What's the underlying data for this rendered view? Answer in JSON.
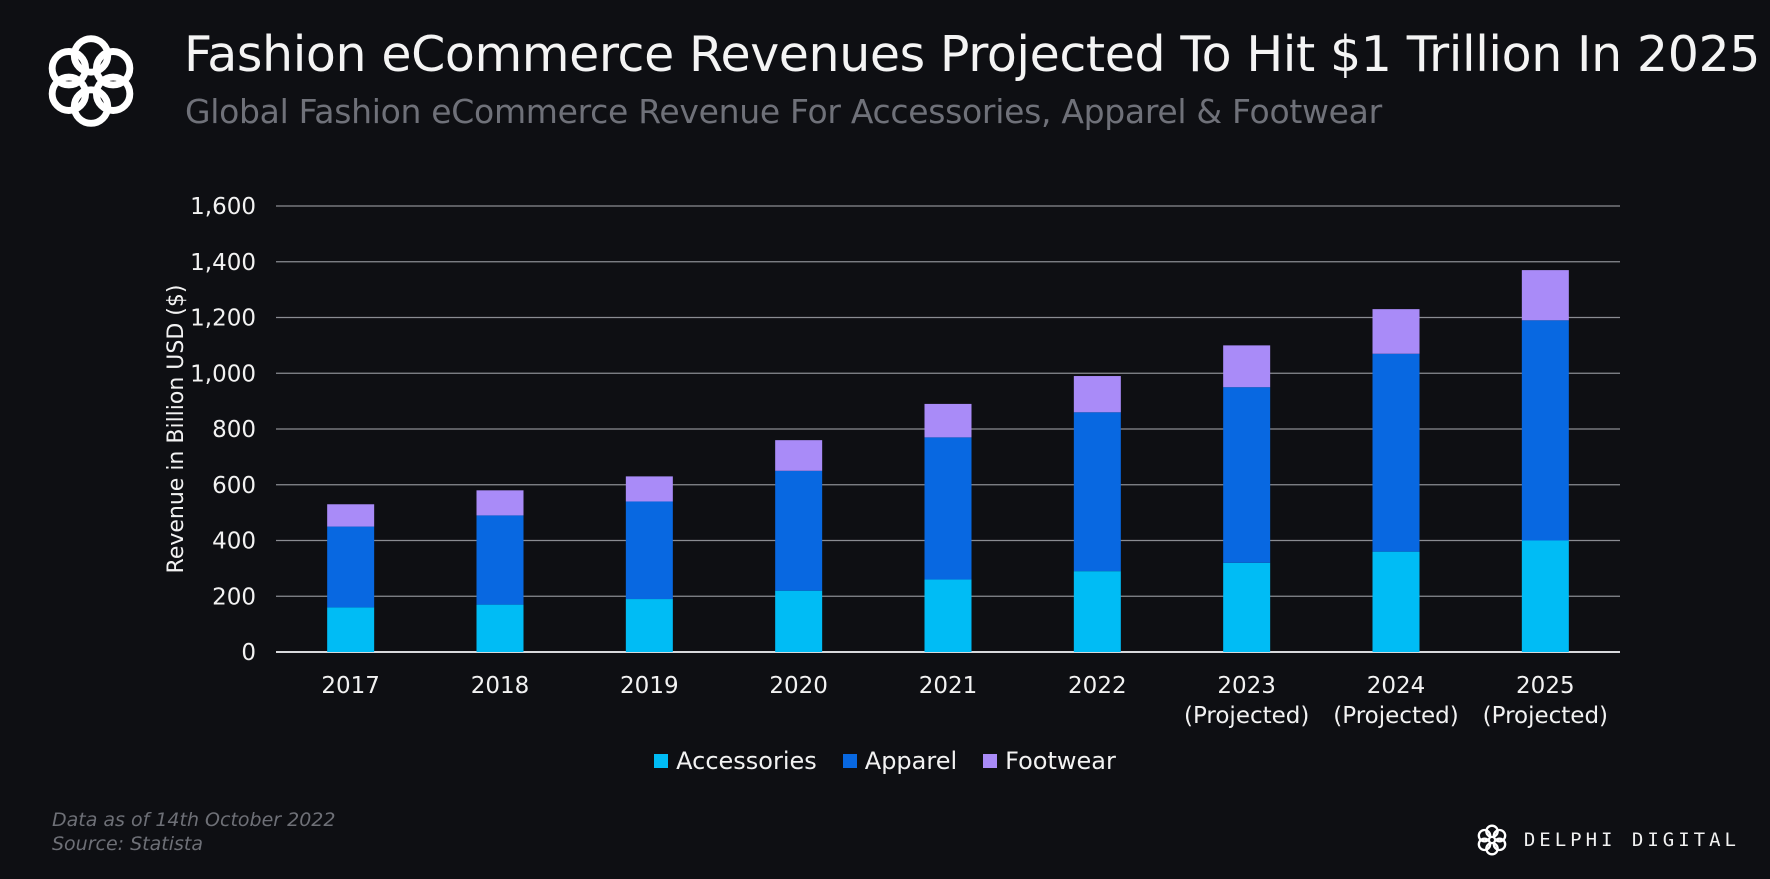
{
  "header": {
    "title": "Fashion eCommerce Revenues Projected To Hit $1 Trillion In 2025",
    "subtitle": "Global Fashion eCommerce Revenue For Accessories, Apparel & Footwear"
  },
  "colors": {
    "background": "#0e0f13",
    "accessories": "#00bcf5",
    "apparel": "#0868e1",
    "footwear": "#a98bf8",
    "grid": "#8a8c92"
  },
  "chart_data": {
    "type": "bar",
    "stacked": true,
    "categories": [
      [
        "2017"
      ],
      [
        "2018"
      ],
      [
        "2019"
      ],
      [
        "2020"
      ],
      [
        "2021"
      ],
      [
        "2022"
      ],
      [
        "2023",
        "(Projected)"
      ],
      [
        "2024",
        "(Projected)"
      ],
      [
        "2025",
        "(Projected)"
      ]
    ],
    "series": [
      {
        "name": "Accessories",
        "values": [
          160,
          170,
          190,
          220,
          260,
          290,
          320,
          360,
          400
        ]
      },
      {
        "name": "Apparel",
        "values": [
          290,
          320,
          350,
          430,
          510,
          570,
          630,
          710,
          790
        ]
      },
      {
        "name": "Footwear",
        "values": [
          80,
          90,
          90,
          110,
          120,
          130,
          150,
          160,
          180
        ]
      }
    ],
    "ylabel": "Revenue in Billion USD ($)",
    "xlabel": "",
    "ylim": [
      0,
      1600
    ],
    "yticks": [
      0,
      200,
      400,
      600,
      800,
      1000,
      1200,
      1400,
      1600
    ],
    "ytick_labels": [
      "0",
      "200",
      "400",
      "600",
      "800",
      "1,000",
      "1,200",
      "1,400",
      "1,600"
    ],
    "grid": true,
    "legend_position": "bottom-center"
  },
  "legend": {
    "items": [
      {
        "label": "Accessories",
        "color": "#00bcf5"
      },
      {
        "label": "Apparel",
        "color": "#0868e1"
      },
      {
        "label": "Footwear",
        "color": "#a98bf8"
      }
    ]
  },
  "footer": {
    "note": "Data as of 14th October 2022",
    "source": "Source: Statista",
    "brand": "DELPHI DIGITAL",
    "brand_icon": "delphi-knot-logo-icon"
  }
}
